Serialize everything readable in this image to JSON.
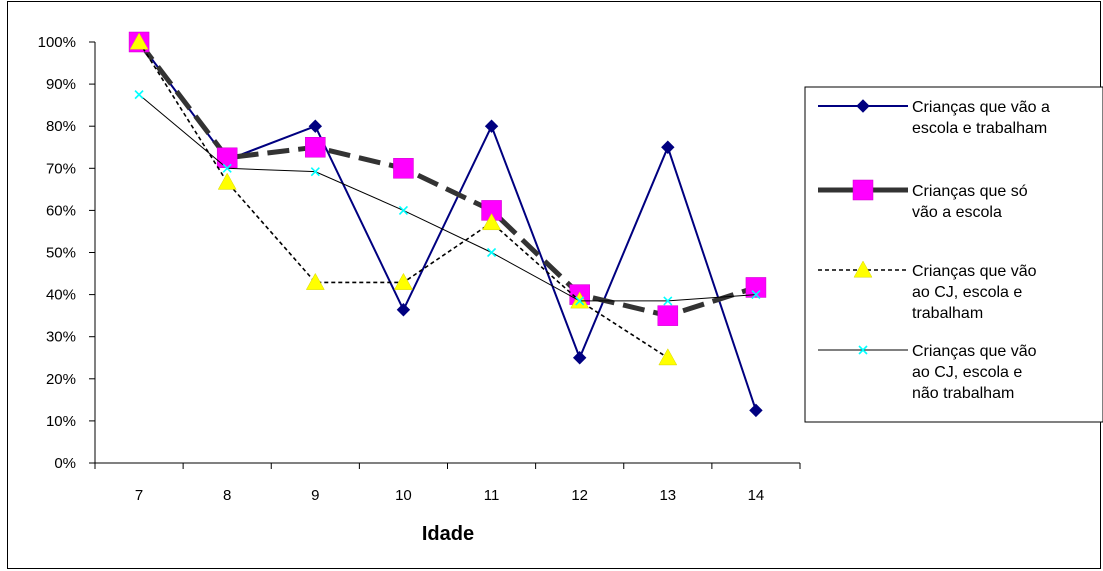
{
  "chart_data": {
    "type": "line",
    "title": "",
    "xlabel": "Idade",
    "ylabel": "",
    "categories": [
      "7",
      "8",
      "9",
      "10",
      "11",
      "12",
      "13",
      "14"
    ],
    "y_ticks": [
      "0%",
      "10%",
      "20%",
      "30%",
      "40%",
      "50%",
      "60%",
      "70%",
      "80%",
      "90%",
      "100%"
    ],
    "ylim": [
      0,
      100
    ],
    "y_unit": "percent",
    "grid": false,
    "legend_position": "right",
    "series": [
      {
        "name_lines": [
          "Crianças que vão a",
          "escola e trabalham"
        ],
        "values": [
          100,
          72,
          80,
          36.4,
          80,
          25,
          75,
          12.5
        ],
        "color": "#000080",
        "line_style": "solid",
        "marker": "diamond",
        "marker_color": "#000080"
      },
      {
        "name_lines": [
          "Crianças que só",
          "vão a escola"
        ],
        "values": [
          100,
          72.5,
          75,
          70,
          60,
          40,
          35,
          41.7
        ],
        "color": "#333333",
        "line_style": "dashed",
        "marker": "square",
        "marker_color": "#ff00ff"
      },
      {
        "name_lines": [
          "Crianças que vão",
          "ao CJ,  escola e",
          "trabalham"
        ],
        "values": [
          100,
          66.7,
          42.9,
          42.9,
          57.1,
          38.5,
          25,
          null
        ],
        "color": "#000000",
        "line_style": "dotted",
        "marker": "triangle",
        "marker_color": "#ffff00"
      },
      {
        "name_lines": [
          "Crianças que vão",
          "ao CJ,  escola e",
          "não trabalham"
        ],
        "values": [
          87.5,
          70,
          69.2,
          60,
          50,
          38.5,
          38.5,
          40
        ],
        "color": "#000000",
        "line_style": "thin",
        "marker": "x",
        "marker_color": "#00ffff"
      }
    ]
  }
}
